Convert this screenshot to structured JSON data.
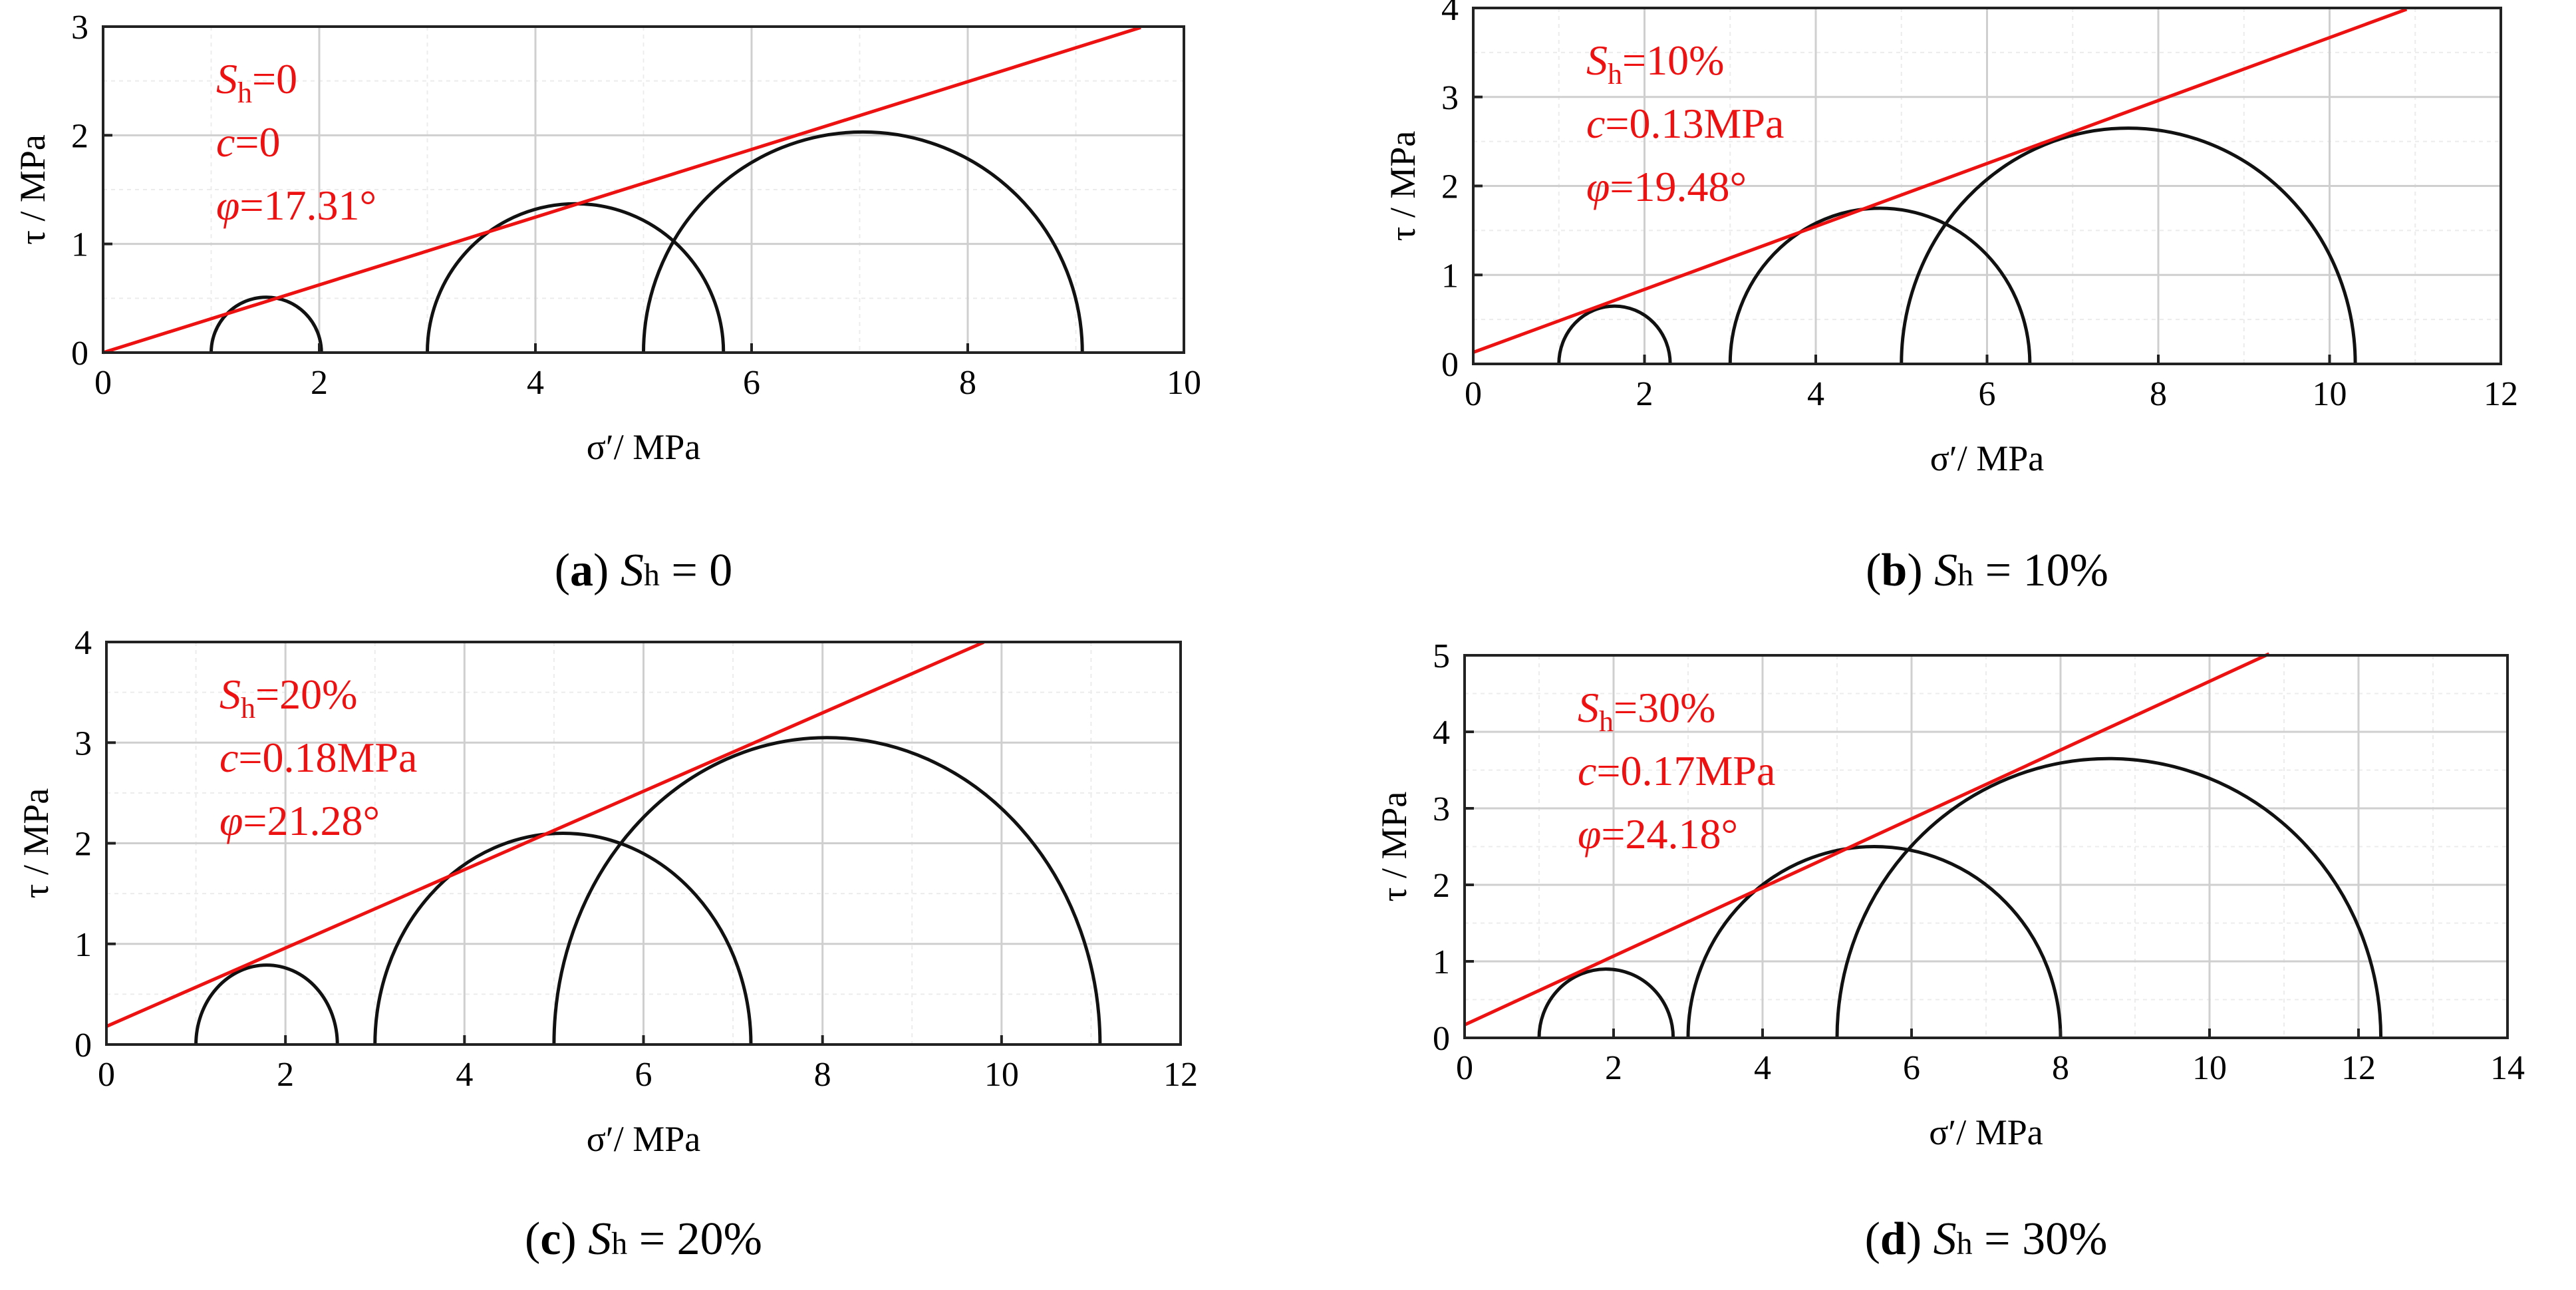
{
  "chart_data": [
    {
      "id": "a",
      "type": "line",
      "title": "",
      "xlabel": "σ′/ MPa",
      "ylabel": "τ / MPa",
      "xlim": [
        0,
        10
      ],
      "ylim": [
        0,
        3
      ],
      "xticks": [
        0,
        2,
        4,
        6,
        8,
        10
      ],
      "yticks": [
        0,
        1,
        2,
        3
      ],
      "xtick_labels": [
        "0",
        "2",
        "4",
        "6",
        "8",
        "10"
      ],
      "ytick_labels": [
        "0",
        "1",
        "2",
        "3"
      ],
      "circles": [
        {
          "sigma3": 1,
          "sigma1": 2.02
        },
        {
          "sigma3": 3,
          "sigma1": 5.74
        },
        {
          "sigma3": 5,
          "sigma1": 9.06
        }
      ],
      "envelope": {
        "c": 0,
        "phi_deg": 17.31,
        "x_end": 9.6
      },
      "annotation": {
        "sh_sym": "S",
        "sh_sub": "h",
        "sh_value": "=0",
        "c_sym": "c",
        "c_value": "=0",
        "phi_sym": "φ",
        "phi_value": "=17.31°"
      },
      "caption": {
        "letter": "a",
        "sym": "S",
        "sub": "h",
        "value": " = 0"
      }
    },
    {
      "id": "b",
      "type": "line",
      "title": "",
      "xlabel": "σ′/ MPa",
      "ylabel": "τ / MPa",
      "xlim": [
        0,
        12
      ],
      "ylim": [
        0,
        4
      ],
      "xticks": [
        0,
        2,
        4,
        6,
        8,
        10,
        12
      ],
      "yticks": [
        0,
        1,
        2,
        3,
        4
      ],
      "xtick_labels": [
        "0",
        "2",
        "4",
        "6",
        "8",
        "10",
        "12"
      ],
      "ytick_labels": [
        "0",
        "1",
        "2",
        "3",
        "4"
      ],
      "circles": [
        {
          "sigma3": 1,
          "sigma1": 2.3
        },
        {
          "sigma3": 3,
          "sigma1": 6.5
        },
        {
          "sigma3": 5,
          "sigma1": 10.3
        }
      ],
      "envelope": {
        "c": 0.13,
        "phi_deg": 19.48,
        "x_end": 10.9
      },
      "annotation": {
        "sh_sym": "S",
        "sh_sub": "h",
        "sh_value": "=10%",
        "c_sym": "c",
        "c_value": "=0.13MPa",
        "phi_sym": "φ",
        "phi_value": "=19.48°"
      },
      "caption": {
        "letter": "b",
        "sym": "S",
        "sub": "h",
        "value": " = 10%"
      }
    },
    {
      "id": "c",
      "type": "line",
      "title": "",
      "xlabel": "σ′/ MPa",
      "ylabel": "τ / MPa",
      "xlim": [
        0,
        12
      ],
      "ylim": [
        0,
        4
      ],
      "xticks": [
        0,
        2,
        4,
        6,
        8,
        10,
        12
      ],
      "yticks": [
        0,
        1,
        2,
        3,
        4
      ],
      "xtick_labels": [
        "0",
        "2",
        "4",
        "6",
        "8",
        "10",
        "12"
      ],
      "ytick_labels": [
        "0",
        "1",
        "2",
        "3",
        "4"
      ],
      "circles": [
        {
          "sigma3": 1,
          "sigma1": 2.58
        },
        {
          "sigma3": 3,
          "sigma1": 7.2
        },
        {
          "sigma3": 5,
          "sigma1": 11.1
        }
      ],
      "envelope": {
        "c": 0.18,
        "phi_deg": 21.28,
        "x_end": 9.8
      },
      "annotation": {
        "sh_sym": "S",
        "sh_sub": "h",
        "sh_value": "=20%",
        "c_sym": "c",
        "c_value": "=0.18MPa",
        "phi_sym": "φ",
        "phi_value": "=21.28°"
      },
      "caption": {
        "letter": "c",
        "sym": "S",
        "sub": "h",
        "value": " = 20%"
      }
    },
    {
      "id": "d",
      "type": "line",
      "title": "",
      "xlabel": "σ′/ MPa",
      "ylabel": "τ / MPa",
      "xlim": [
        0,
        14
      ],
      "ylim": [
        0,
        5
      ],
      "xticks": [
        0,
        2,
        4,
        6,
        8,
        10,
        12,
        14
      ],
      "yticks": [
        0,
        1,
        2,
        3,
        4,
        5
      ],
      "xtick_labels": [
        "0",
        "2",
        "4",
        "6",
        "8",
        "10",
        "12",
        "14"
      ],
      "ytick_labels": [
        "0",
        "1",
        "2",
        "3",
        "4",
        "5"
      ],
      "circles": [
        {
          "sigma3": 1,
          "sigma1": 2.8
        },
        {
          "sigma3": 3,
          "sigma1": 8.0
        },
        {
          "sigma3": 5,
          "sigma1": 12.3
        }
      ],
      "envelope": {
        "c": 0.17,
        "phi_deg": 24.18,
        "x_end": 10.8
      },
      "annotation": {
        "sh_sym": "S",
        "sh_sub": "h",
        "sh_value": "=30%",
        "c_sym": "c",
        "c_value": "=0.17MPa",
        "phi_sym": "φ",
        "phi_value": "=24.18°"
      },
      "caption": {
        "letter": "d",
        "sym": "S",
        "sub": "h",
        "value": " = 30%"
      }
    }
  ]
}
